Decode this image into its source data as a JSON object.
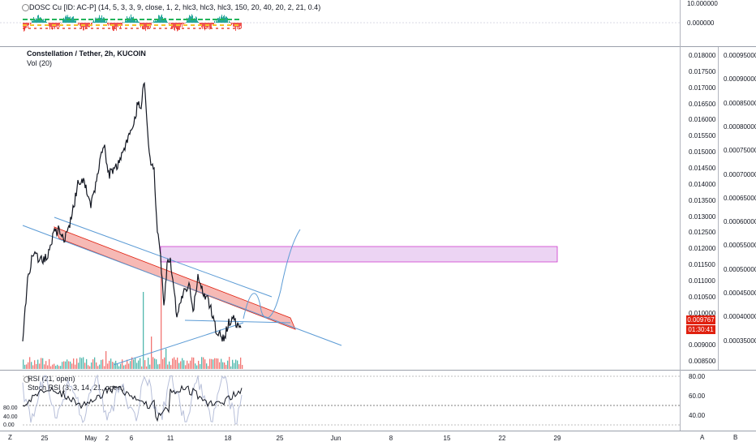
{
  "indicator_top": {
    "title": "DOSC Cu [ID: AC-P] (14, 5, 3, 3, 9, close, 1, 2, hlc3, hlc3, hlc3, 150, 20, 40, 20, 2, 21, 0.4)",
    "axis_labels": [
      "10.000000",
      "0.000000"
    ]
  },
  "main_chart": {
    "title": "Constellation / Tether, 2h, KUCOIN",
    "vol_label": "Vol (20)",
    "price_axis": [
      "0.018000",
      "0.017500",
      "0.017000",
      "0.016500",
      "0.016000",
      "0.015500",
      "0.015000",
      "0.014500",
      "0.014000",
      "0.013500",
      "0.013000",
      "0.012500",
      "0.012000",
      "0.011500",
      "0.011000",
      "0.010500",
      "0.010000",
      "0.009500",
      "0.009000",
      "0.008500"
    ],
    "vol_axis": [
      "0.00095000",
      "0.00090000",
      "0.00085000",
      "0.00080000",
      "0.00075000",
      "0.00070000",
      "0.00065000",
      "0.00060000",
      "0.00055000",
      "0.00050000",
      "0.00045000",
      "0.00040000",
      "0.00035000"
    ],
    "last_price": "0.009767",
    "countdown": "01:30:41"
  },
  "oscillator": {
    "rsi_title": "RSI (21, open)",
    "stoch_title": "Stoch RSI (3, 3, 14, 21, open)",
    "left_axis": [
      "80.00",
      "40.00",
      "0.00"
    ],
    "right_axis": [
      "80.00",
      "60.00",
      "40.00"
    ]
  },
  "time_axis": [
    "25",
    "May",
    "2",
    "6",
    "11",
    "18",
    "25",
    "Jun",
    "8",
    "15",
    "22",
    "29"
  ],
  "corner_buttons": {
    "left": "Z",
    "mid": "A",
    "right": "B"
  },
  "colors": {
    "price_line": "#131722",
    "trend_blue": "#5b9bd5",
    "channel_red": "#f4a7a3",
    "zone_pink": "#e7c9f0",
    "last_price": "#e0200f"
  }
}
